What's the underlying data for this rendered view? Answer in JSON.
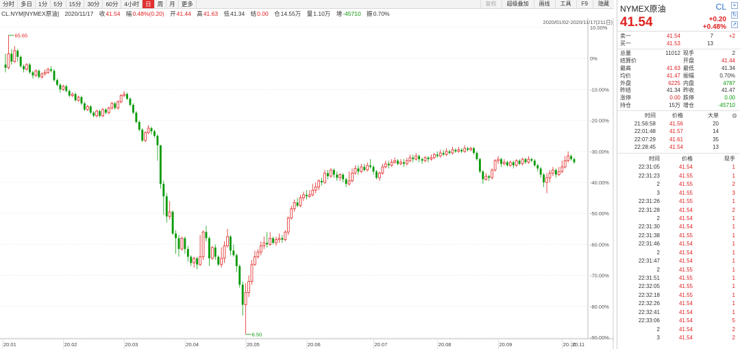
{
  "toolbar": {
    "periods": [
      "分时",
      "多日",
      "1分",
      "5分",
      "15分",
      "30分",
      "60分",
      "4小时",
      "日",
      "周",
      "月",
      "更多"
    ],
    "active_period": "日",
    "tools": [
      {
        "label": "复权",
        "dim": true
      },
      {
        "label": "超级叠加",
        "dim": false
      },
      {
        "label": "画线",
        "dim": false
      },
      {
        "label": "工具",
        "dim": false
      },
      {
        "label": "F9",
        "dim": false
      },
      {
        "label": "隐藏",
        "dim": false
      }
    ]
  },
  "info": {
    "code": "CL.NYM[NYMEX原油]",
    "date": "2020/11/17",
    "close_label": "收",
    "close": "41.54",
    "change_label": "幅",
    "change": "0.48%(0.20)",
    "open_label": "开",
    "open": "41.44",
    "high_label": "高",
    "high": "41.63",
    "low_label": "低",
    "low": "41.34",
    "settle_label": "结",
    "settle": "0.00",
    "amount_label": "仓",
    "amount": "14.55万",
    "volume_label": "量",
    "volume": "1.10万",
    "oi_label": "增",
    "oi": "-45710",
    "amp_label": "振",
    "amp": "0.70%"
  },
  "date_range": "2020/01/02-2020/11/17(211日)",
  "chart_data": {
    "type": "candlestick",
    "y_axis_ticks": [
      "10.00%",
      "0%",
      "-10.00%",
      "-20.00%",
      "-30.00%",
      "-40.00%",
      "-50.00%",
      "-60.00%",
      "-70.00%",
      "-80.00%",
      "-90.00%"
    ],
    "y_range_pct": [
      10,
      -90
    ],
    "x_axis_ticks": [
      "20.01",
      "20.02",
      "20.03",
      "20.04",
      "20.05",
      "20.06",
      "20.07",
      "20.08",
      "20.09",
      "20.10",
      "20.11"
    ],
    "max_label": "65.65",
    "min_label": "6.50",
    "candles_pct": [
      [
        -2.0,
        -3.0,
        1.5,
        -4.5
      ],
      [
        -3.0,
        1.5,
        7.5,
        -3.5
      ],
      [
        1.5,
        -1.0,
        3.0,
        -2.0
      ],
      [
        -1.0,
        2.5,
        4.0,
        -1.5
      ],
      [
        2.5,
        0.5,
        3.0,
        -1.0
      ],
      [
        0.5,
        -2.5,
        1.0,
        -3.0
      ],
      [
        -2.5,
        -3.5,
        -2.0,
        -4.5
      ],
      [
        -3.5,
        -2.0,
        -1.5,
        -4.0
      ],
      [
        -2.0,
        -4.5,
        -1.5,
        -5.0
      ],
      [
        -4.5,
        -5.5,
        -4.0,
        -6.5
      ],
      [
        -5.5,
        -4.0,
        -3.5,
        -6.0
      ],
      [
        -4.0,
        -6.0,
        -3.5,
        -6.5
      ],
      [
        -6.0,
        -5.0,
        -4.5,
        -6.5
      ],
      [
        -5.0,
        -4.5,
        -3.5,
        -5.5
      ],
      [
        -4.5,
        -3.5,
        -3.0,
        -5.0
      ],
      [
        -3.5,
        -4.0,
        -2.5,
        -4.5
      ],
      [
        -4.0,
        -7.0,
        -3.5,
        -7.5
      ],
      [
        -7.0,
        -8.5,
        -6.5,
        -9.0
      ],
      [
        -8.5,
        -10.0,
        -8.0,
        -11.0
      ],
      [
        -10.0,
        -9.0,
        -8.5,
        -10.5
      ],
      [
        -9.0,
        -10.5,
        -8.5,
        -11.0
      ],
      [
        -10.5,
        -12.0,
        -10.0,
        -12.5
      ],
      [
        -12.0,
        -11.5,
        -11.0,
        -12.5
      ],
      [
        -11.5,
        -13.5,
        -11.0,
        -14.0
      ],
      [
        -13.5,
        -12.5,
        -12.0,
        -14.0
      ],
      [
        -12.5,
        -14.5,
        -12.0,
        -15.0
      ],
      [
        -14.5,
        -16.5,
        -14.0,
        -17.0
      ],
      [
        -16.5,
        -15.5,
        -15.0,
        -17.0
      ],
      [
        -15.5,
        -17.5,
        -15.0,
        -18.0
      ],
      [
        -17.5,
        -18.5,
        -17.0,
        -19.0
      ],
      [
        -18.5,
        -17.0,
        -16.5,
        -19.0
      ],
      [
        -17.0,
        -18.5,
        -16.5,
        -19.0
      ],
      [
        -18.5,
        -16.5,
        -16.0,
        -19.0
      ],
      [
        -16.5,
        -17.5,
        -16.0,
        -18.0
      ],
      [
        -17.5,
        -16.0,
        -15.5,
        -18.0
      ],
      [
        -16.0,
        -14.5,
        -14.0,
        -16.5
      ],
      [
        -14.5,
        -16.0,
        -14.0,
        -16.5
      ],
      [
        -16.0,
        -14.0,
        -13.5,
        -16.5
      ],
      [
        -14.0,
        -12.0,
        -11.5,
        -14.5
      ],
      [
        -12.0,
        -11.5,
        -10.5,
        -12.5
      ],
      [
        -11.5,
        -13.0,
        -11.0,
        -13.5
      ],
      [
        -13.0,
        -15.0,
        -12.5,
        -15.5
      ],
      [
        -15.0,
        -17.5,
        -14.5,
        -18.0
      ],
      [
        -17.5,
        -20.5,
        -17.0,
        -21.0
      ],
      [
        -20.5,
        -23.0,
        -20.0,
        -23.5
      ],
      [
        -23.0,
        -26.5,
        -22.5,
        -27.0
      ],
      [
        -26.5,
        -24.0,
        -23.5,
        -27.0
      ],
      [
        -24.0,
        -22.5,
        -21.5,
        -24.5
      ],
      [
        -22.5,
        -23.5,
        -22.0,
        -24.5
      ],
      [
        -23.5,
        -25.0,
        -23.0,
        -25.5
      ],
      [
        -25.0,
        -28.0,
        -24.5,
        -33.0
      ],
      [
        -28.0,
        -40.5,
        -28.0,
        -42.0
      ],
      [
        -40.5,
        -44.5,
        -39.5,
        -50.5
      ],
      [
        -44.5,
        -51.0,
        -43.5,
        -53.0
      ],
      [
        -51.0,
        -49.5,
        -46.0,
        -52.0
      ],
      [
        -49.5,
        -56.5,
        -49.0,
        -57.0
      ],
      [
        -56.5,
        -58.0,
        -55.5,
        -63.0
      ],
      [
        -58.0,
        -61.5,
        -57.0,
        -64.0
      ],
      [
        -61.5,
        -58.0,
        -57.5,
        -62.0
      ],
      [
        -58.0,
        -61.5,
        -57.5,
        -63.0
      ],
      [
        -61.5,
        -64.0,
        -60.5,
        -65.5
      ],
      [
        -64.0,
        -66.0,
        -63.5,
        -67.0
      ],
      [
        -66.0,
        -64.5,
        -64.0,
        -67.5
      ],
      [
        -64.5,
        -66.5,
        -64.0,
        -68.0
      ],
      [
        -66.5,
        -64.0,
        -57.0,
        -67.0
      ],
      [
        -64.0,
        -56.0,
        -55.5,
        -65.0
      ],
      [
        -56.0,
        -58.0,
        -54.0,
        -59.0
      ],
      [
        -58.0,
        -64.5,
        -57.5,
        -67.0
      ],
      [
        -64.5,
        -61.0,
        -60.5,
        -65.0
      ],
      [
        -61.0,
        -64.0,
        -60.0,
        -65.0
      ],
      [
        -64.0,
        -66.5,
        -63.5,
        -67.0
      ],
      [
        -66.5,
        -64.5,
        -61.0,
        -67.5
      ],
      [
        -64.5,
        -60.5,
        -59.0,
        -66.0
      ],
      [
        -60.5,
        -57.5,
        -55.0,
        -61.0
      ],
      [
        -57.5,
        -62.0,
        -57.0,
        -63.5
      ],
      [
        -62.0,
        -63.5,
        -60.0,
        -64.0
      ],
      [
        -63.5,
        -67.0,
        -63.0,
        -69.0
      ],
      [
        -67.0,
        -73.0,
        -66.5,
        -74.0
      ],
      [
        -73.0,
        -79.5,
        -72.0,
        -83.0
      ],
      [
        -79.5,
        -75.5,
        -72.5,
        -89.0
      ],
      [
        -75.5,
        -72.0,
        -70.0,
        -77.0
      ],
      [
        -72.0,
        -66.5,
        -65.0,
        -73.0
      ],
      [
        -66.5,
        -64.0,
        -62.0,
        -67.0
      ],
      [
        -64.0,
        -62.5,
        -61.5,
        -64.5
      ],
      [
        -62.5,
        -60.5,
        -59.0,
        -63.5
      ],
      [
        -60.5,
        -59.5,
        -57.5,
        -61.5
      ],
      [
        -59.5,
        -60.0,
        -56.0,
        -61.0
      ],
      [
        -60.0,
        -58.0,
        -56.0,
        -60.5
      ],
      [
        -58.0,
        -59.5,
        -57.5,
        -60.0
      ],
      [
        -59.5,
        -58.5,
        -57.5,
        -60.5
      ],
      [
        -58.5,
        -58.0,
        -56.5,
        -59.5
      ],
      [
        -58.0,
        -58.5,
        -57.0,
        -59.5
      ],
      [
        -58.5,
        -56.0,
        -55.5,
        -59.0
      ],
      [
        -56.0,
        -51.5,
        -51.0,
        -57.0
      ],
      [
        -51.5,
        -48.5,
        -47.5,
        -52.0
      ],
      [
        -48.5,
        -46.5,
        -45.5,
        -49.5
      ],
      [
        -46.5,
        -47.5,
        -45.0,
        -48.0
      ],
      [
        -47.5,
        -45.0,
        -44.0,
        -48.0
      ],
      [
        -45.0,
        -44.0,
        -43.0,
        -46.0
      ],
      [
        -44.0,
        -44.5,
        -42.5,
        -45.5
      ],
      [
        -44.5,
        -44.0,
        -42.5,
        -45.0
      ],
      [
        -44.0,
        -42.5,
        -40.5,
        -44.5
      ],
      [
        -42.5,
        -41.5,
        -40.0,
        -43.5
      ],
      [
        -41.5,
        -39.5,
        -39.0,
        -42.5
      ],
      [
        -39.5,
        -40.0,
        -38.5,
        -41.0
      ],
      [
        -40.0,
        -37.0,
        -36.0,
        -40.5
      ],
      [
        -37.0,
        -38.0,
        -36.0,
        -39.0
      ],
      [
        -38.0,
        -36.0,
        -35.5,
        -38.5
      ],
      [
        -36.0,
        -37.5,
        -35.5,
        -38.5
      ],
      [
        -37.5,
        -38.5,
        -36.5,
        -39.5
      ],
      [
        -38.5,
        -37.5,
        -37.0,
        -39.5
      ],
      [
        -37.5,
        -39.0,
        -37.0,
        -40.0
      ],
      [
        -39.0,
        -40.5,
        -38.5,
        -41.5
      ],
      [
        -40.5,
        -39.5,
        -36.5,
        -41.0
      ],
      [
        -39.5,
        -37.0,
        -35.5,
        -40.0
      ],
      [
        -37.0,
        -35.5,
        -34.5,
        -37.5
      ],
      [
        -35.5,
        -36.5,
        -34.5,
        -37.5
      ],
      [
        -36.5,
        -35.0,
        -34.0,
        -37.0
      ],
      [
        -35.0,
        -36.0,
        -34.0,
        -36.5
      ],
      [
        -36.0,
        -34.5,
        -33.5,
        -36.5
      ],
      [
        -34.5,
        -35.0,
        -32.5,
        -35.5
      ],
      [
        -35.0,
        -36.5,
        -34.5,
        -37.5
      ],
      [
        -36.5,
        -38.5,
        -36.0,
        -39.0
      ],
      [
        -38.5,
        -37.0,
        -36.5,
        -39.5
      ],
      [
        -37.0,
        -35.0,
        -34.0,
        -37.5
      ],
      [
        -35.0,
        -34.0,
        -33.0,
        -35.5
      ],
      [
        -34.0,
        -34.5,
        -33.0,
        -35.5
      ],
      [
        -34.5,
        -33.5,
        -32.5,
        -35.0
      ],
      [
        -33.5,
        -33.0,
        -32.0,
        -34.0
      ],
      [
        -33.0,
        -34.0,
        -32.5,
        -34.5
      ],
      [
        -34.0,
        -33.5,
        -32.5,
        -34.5
      ],
      [
        -33.5,
        -34.0,
        -32.5,
        -35.0
      ],
      [
        -34.0,
        -33.0,
        -32.0,
        -34.5
      ],
      [
        -33.0,
        -32.0,
        -31.0,
        -33.5
      ],
      [
        -32.0,
        -32.5,
        -31.0,
        -33.5
      ],
      [
        -32.5,
        -31.5,
        -30.5,
        -33.0
      ],
      [
        -31.5,
        -32.5,
        -31.0,
        -33.5
      ],
      [
        -32.5,
        -33.0,
        -32.0,
        -34.0
      ],
      [
        -33.0,
        -32.0,
        -31.5,
        -33.5
      ],
      [
        -32.0,
        -32.5,
        -31.5,
        -33.5
      ],
      [
        -32.5,
        -32.0,
        -31.0,
        -33.0
      ],
      [
        -32.0,
        -31.0,
        -30.5,
        -32.5
      ],
      [
        -31.0,
        -31.5,
        -30.0,
        -32.0
      ],
      [
        -31.5,
        -30.5,
        -29.5,
        -32.0
      ],
      [
        -30.5,
        -31.0,
        -29.5,
        -31.5
      ],
      [
        -31.0,
        -30.0,
        -29.0,
        -31.5
      ],
      [
        -30.0,
        -30.5,
        -29.5,
        -31.0
      ],
      [
        -30.5,
        -29.5,
        -28.5,
        -31.0
      ],
      [
        -29.5,
        -30.0,
        -29.0,
        -30.5
      ],
      [
        -30.0,
        -29.5,
        -28.5,
        -30.5
      ],
      [
        -29.5,
        -30.0,
        -29.0,
        -30.5
      ],
      [
        -30.0,
        -29.0,
        -28.0,
        -30.5
      ],
      [
        -29.0,
        -29.5,
        -28.5,
        -30.0
      ],
      [
        -29.5,
        -29.0,
        -28.5,
        -30.0
      ],
      [
        -29.0,
        -30.5,
        -28.5,
        -31.0
      ],
      [
        -30.5,
        -32.5,
        -30.0,
        -33.0
      ],
      [
        -32.5,
        -36.5,
        -32.0,
        -37.0
      ],
      [
        -36.5,
        -39.0,
        -36.0,
        -40.5
      ],
      [
        -39.0,
        -38.0,
        -37.0,
        -39.5
      ],
      [
        -38.0,
        -38.5,
        -37.5,
        -39.5
      ],
      [
        -38.5,
        -36.0,
        -35.5,
        -39.0
      ],
      [
        -36.0,
        -33.0,
        -32.5,
        -36.5
      ],
      [
        -33.0,
        -32.5,
        -31.5,
        -34.0
      ],
      [
        -32.5,
        -34.0,
        -32.0,
        -35.0
      ],
      [
        -34.0,
        -33.5,
        -32.5,
        -34.5
      ],
      [
        -33.5,
        -34.5,
        -33.0,
        -35.0
      ],
      [
        -34.5,
        -33.5,
        -33.0,
        -35.0
      ],
      [
        -33.5,
        -34.5,
        -33.0,
        -35.5
      ],
      [
        -34.5,
        -33.0,
        -32.5,
        -35.0
      ],
      [
        -33.0,
        -34.0,
        -32.5,
        -34.5
      ],
      [
        -34.0,
        -32.5,
        -32.0,
        -34.5
      ],
      [
        -32.5,
        -33.5,
        -32.0,
        -34.0
      ],
      [
        -33.5,
        -32.5,
        -31.5,
        -34.0
      ],
      [
        -32.5,
        -33.0,
        -32.0,
        -33.5
      ],
      [
        -33.0,
        -34.5,
        -32.5,
        -35.0
      ],
      [
        -34.5,
        -35.5,
        -34.0,
        -36.5
      ],
      [
        -35.5,
        -37.5,
        -35.0,
        -38.5
      ],
      [
        -37.5,
        -40.0,
        -37.0,
        -41.5
      ],
      [
        -40.0,
        -38.5,
        -37.0,
        -43.5
      ],
      [
        -38.5,
        -37.0,
        -36.0,
        -40.0
      ],
      [
        -37.0,
        -36.0,
        -35.0,
        -38.0
      ],
      [
        -36.0,
        -37.5,
        -35.5,
        -38.5
      ],
      [
        -37.5,
        -36.5,
        -35.0,
        -38.0
      ],
      [
        -36.5,
        -35.0,
        -33.0,
        -37.0
      ],
      [
        -35.0,
        -33.0,
        -31.5,
        -35.5
      ],
      [
        -33.0,
        -31.5,
        -30.0,
        -33.5
      ],
      [
        -31.5,
        -32.5,
        -31.0,
        -33.0
      ],
      [
        -32.5,
        -33.5,
        -32.0,
        -34.0
      ]
    ]
  },
  "panel": {
    "name": "NYMEX原油",
    "code": "CL",
    "price": "41.54",
    "change": "+0.20",
    "change_pct": "+0.48%",
    "quotes": [
      {
        "label": "卖一",
        "price": "41.54",
        "vol": "7",
        "diff": "+2"
      },
      {
        "label": "买一",
        "price": "41.53",
        "vol": "13",
        "diff": ""
      }
    ],
    "stats": [
      {
        "k": "总量",
        "v": "11012",
        "vc": "dark",
        "k2": "现手",
        "v2": "2",
        "v2c": "dark"
      },
      {
        "k": "结算价",
        "v": "",
        "vc": "dark",
        "k2": "开盘",
        "v2": "41.44",
        "v2c": "red"
      },
      {
        "k": "最高",
        "v": "41.63",
        "vc": "red",
        "k2": "最低",
        "v2": "41.34",
        "v2c": "dark"
      },
      {
        "k": "均价",
        "v": "41.47",
        "vc": "red",
        "k2": "振幅",
        "v2": "0.70%",
        "v2c": "dark"
      },
      {
        "k": "外盘",
        "v": "6225",
        "vc": "red",
        "k2": "内盘",
        "v2": "4787",
        "v2c": "green"
      },
      {
        "k": "昨结",
        "v": "41.34",
        "vc": "dark",
        "k2": "昨收",
        "v2": "41.47",
        "v2c": "dark"
      },
      {
        "k": "涨停",
        "v": "0.00",
        "vc": "red",
        "k2": "跌停",
        "v2": "0.00",
        "v2c": "green"
      },
      {
        "k": "持仓",
        "v": "15万",
        "vc": "dark",
        "k2": "增仓",
        "v2": "-45710",
        "v2c": "green"
      }
    ],
    "big_header": {
      "t": "时间",
      "p": "价格",
      "v": "大单"
    },
    "big_orders": [
      {
        "t": "21:56:58",
        "p": "41.56",
        "v": "20"
      },
      {
        "t": "22:01:48",
        "p": "41.57",
        "v": "14"
      },
      {
        "t": "22:07:29",
        "p": "41.61",
        "v": "35"
      },
      {
        "t": "22:28:45",
        "p": "41.54",
        "v": "13"
      }
    ],
    "ticks_header": {
      "t": "时间",
      "p": "价格",
      "v": "现手"
    },
    "ticks": [
      {
        "t": "22:31:05",
        "p": "41.54",
        "v": "1"
      },
      {
        "t": "22:31:23",
        "p": "41.55",
        "v": "1"
      },
      {
        "t": "2",
        "p": "41.55",
        "v": "2"
      },
      {
        "t": "3",
        "p": "41.55",
        "v": "3"
      },
      {
        "t": "22:31:26",
        "p": "41.55",
        "v": "1"
      },
      {
        "t": "22:31:28",
        "p": "41.54",
        "v": "2"
      },
      {
        "t": "2",
        "p": "41.54",
        "v": "1"
      },
      {
        "t": "22:31:30",
        "p": "41.54",
        "v": "1"
      },
      {
        "t": "22:31:38",
        "p": "41.55",
        "v": "1"
      },
      {
        "t": "22:31:46",
        "p": "41.54",
        "v": "1"
      },
      {
        "t": "2",
        "p": "41.54",
        "v": "1"
      },
      {
        "t": "22:31:47",
        "p": "41.54",
        "v": "1"
      },
      {
        "t": "2",
        "p": "41.55",
        "v": "1"
      },
      {
        "t": "22:31:51",
        "p": "41.55",
        "v": "1"
      },
      {
        "t": "22:32:05",
        "p": "41.55",
        "v": "1"
      },
      {
        "t": "22:32:18",
        "p": "41.55",
        "v": "1"
      },
      {
        "t": "22:32:26",
        "p": "41.54",
        "v": "1"
      },
      {
        "t": "22:32:41",
        "p": "41.54",
        "v": "1"
      },
      {
        "t": "22:33:06",
        "p": "41.54",
        "v": "5"
      },
      {
        "t": "2",
        "p": "41.54",
        "v": "2"
      },
      {
        "t": "3",
        "p": "41.54",
        "v": "2"
      }
    ]
  }
}
